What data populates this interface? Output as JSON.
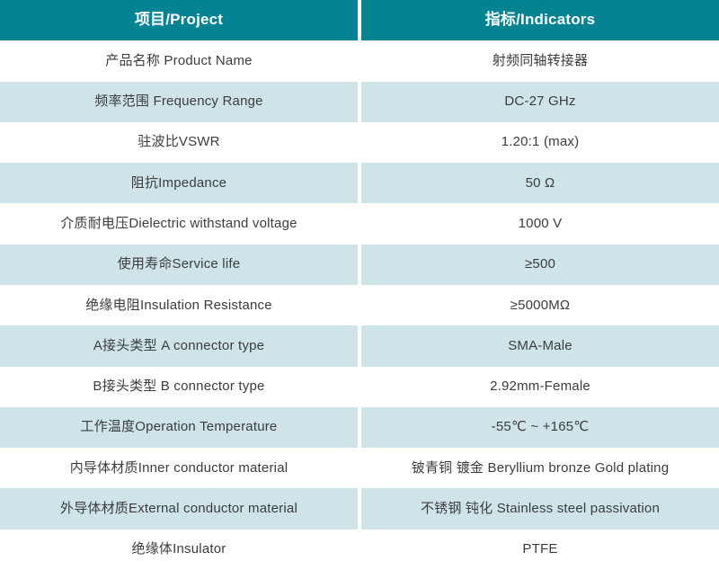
{
  "colors": {
    "header_bg": "#048392",
    "header_text": "#ffffff",
    "row_bg": "#ffffff",
    "row_alt_bg": "#cee4e9",
    "body_text": "#3c3c3c"
  },
  "table": {
    "header": {
      "project": "项目/Project",
      "indicators": "指标/Indicators"
    },
    "rows": [
      {
        "project": "产品名称 Product Name",
        "indicator": "射频同轴转接器"
      },
      {
        "project": "频率范围 Frequency Range",
        "indicator": "DC-27 GHz"
      },
      {
        "project": "驻波比VSWR",
        "indicator": "1.20:1 (max)"
      },
      {
        "project": "阻抗Impedance",
        "indicator": "50 Ω"
      },
      {
        "project": "介质耐电压Dielectric withstand voltage",
        "indicator": "1000 V"
      },
      {
        "project": "使用寿命Service life",
        "indicator": "≥500"
      },
      {
        "project": "绝缘电阻Insulation Resistance",
        "indicator": "≥5000MΩ"
      },
      {
        "project": "A接头类型 A connector type",
        "indicator": "SMA-Male"
      },
      {
        "project": "B接头类型 B connector type",
        "indicator": "2.92mm-Female"
      },
      {
        "project": "工作温度Operation Temperature",
        "indicator": "-55℃ ~ +165℃"
      },
      {
        "project": "内导体材质Inner conductor material",
        "indicator": "铍青铜 镀金 Beryllium bronze Gold plating"
      },
      {
        "project": "外导体材质External conductor material",
        "indicator": "不锈钢 钝化 Stainless steel passivation"
      },
      {
        "project": "绝缘体Insulator",
        "indicator": "PTFE"
      }
    ]
  }
}
